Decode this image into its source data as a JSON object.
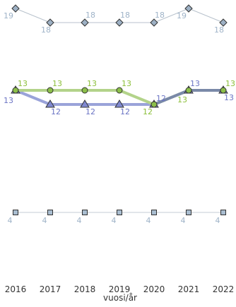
{
  "chart_data": {
    "type": "line",
    "xlabel": "vuosi/år",
    "x": [
      "2016",
      "2017",
      "2018",
      "2019",
      "2020",
      "2021",
      "2022"
    ],
    "grid": false,
    "legend": "none",
    "series": [
      {
        "marker": "diamond",
        "color": "#b8c2cc",
        "marker_fill": "#9db0c4",
        "label_color": "#9fb3c8",
        "values": [
          19,
          18,
          18,
          18,
          18,
          19,
          18
        ]
      },
      {
        "marker": "circle",
        "color": "#b3d38a",
        "marker_fill": "#8cbf4a",
        "label_color": "#8cbf3a",
        "values": [
          13,
          13,
          13,
          13,
          12,
          13,
          13
        ]
      },
      {
        "marker": "triangle",
        "color": "#9aa3d9",
        "marker_fill": "#7f88d0",
        "label_color": "#6b74c4",
        "values": [
          13,
          12,
          12,
          12,
          12,
          13,
          13
        ]
      },
      {
        "marker": "square",
        "color": "#c4cdd6",
        "marker_fill": "#a9bdd0",
        "label_color": "#9fb3c8",
        "values": [
          4,
          4,
          4,
          4,
          4,
          4,
          4
        ]
      }
    ],
    "overlap_color": "#7a89a8"
  }
}
